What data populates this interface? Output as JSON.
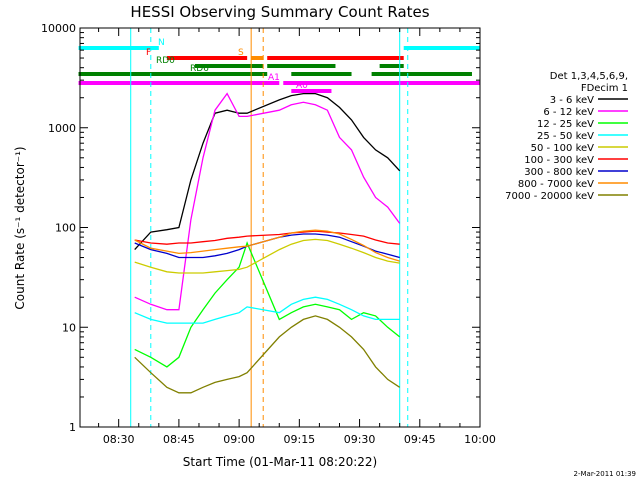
{
  "chart_data": {
    "type": "line",
    "title": "HESSI Observing Summary Count Rates",
    "xlabel": "Start Time (01-Mar-11 08:20:22)",
    "ylabel": "Count Rate (s⁻¹ detector⁻¹)",
    "y_scale": "log",
    "ylim": [
      1,
      10000
    ],
    "xlim": [
      "08:20:22",
      "10:00:00"
    ],
    "x_ticks": [
      "08:30",
      "08:45",
      "09:00",
      "09:15",
      "09:30",
      "09:45",
      "10:00"
    ],
    "y_ticks": [
      "1",
      "10",
      "100",
      "1000",
      "10000"
    ],
    "legend_position": "right",
    "legend_header": [
      "Det 1,3,4,5,6,9,",
      "FDecim 1"
    ],
    "timestamp": "2-Mar-2011 01:39",
    "flags": [
      {
        "label": "N",
        "color": "#00ffff",
        "segments": [
          [
            "08:20",
            "08:40"
          ],
          [
            "09:41",
            "10:00"
          ]
        ]
      },
      {
        "label": "S",
        "color": "#ff8c00",
        "segments": [
          [
            "09:03",
            "09:06"
          ]
        ]
      },
      {
        "label": "F",
        "color": "#ff0000",
        "segments": [
          [
            "08:42",
            "09:02"
          ],
          [
            "09:07",
            "09:41"
          ]
        ]
      },
      {
        "label": "RD0",
        "color": "#008000",
        "segments": [
          [
            "08:49",
            "09:06"
          ],
          [
            "09:07",
            "09:24"
          ],
          [
            "09:35",
            "09:41"
          ]
        ]
      },
      {
        "label": "RD6",
        "color": "#008000",
        "segments": [
          [
            "08:20",
            "09:07"
          ],
          [
            "09:13",
            "09:28"
          ],
          [
            "09:33",
            "09:58"
          ]
        ]
      },
      {
        "label": "A1",
        "color": "#ff00ff",
        "segments": [
          [
            "08:20",
            "09:10"
          ],
          [
            "09:11",
            "10:00"
          ]
        ]
      },
      {
        "label": "A0",
        "color": "#ff00ff",
        "segments": [
          [
            "09:13",
            "09:23"
          ]
        ]
      }
    ],
    "vertical_markers": [
      {
        "time": "08:33",
        "color": "#00ffff",
        "style": "solid"
      },
      {
        "time": "08:38",
        "color": "#00ffff",
        "style": "dashed"
      },
      {
        "time": "09:03",
        "color": "#ff8c00",
        "style": "solid"
      },
      {
        "time": "09:06",
        "color": "#ff8c00",
        "style": "dashed"
      },
      {
        "time": "09:40",
        "color": "#00ffff",
        "style": "solid"
      },
      {
        "time": "09:42",
        "color": "#00ffff",
        "style": "dashed"
      }
    ],
    "series": [
      {
        "name": "3 - 6 keV",
        "color": "#000000",
        "x": [
          "08:34",
          "08:38",
          "08:42",
          "08:45",
          "08:48",
          "08:51",
          "08:54",
          "08:57",
          "09:00",
          "09:02",
          "09:10",
          "09:13",
          "09:16",
          "09:19",
          "09:22",
          "09:25",
          "09:28",
          "09:31",
          "09:34",
          "09:37",
          "09:40"
        ],
        "y": [
          60,
          90,
          95,
          100,
          300,
          700,
          1400,
          1500,
          1400,
          1400,
          1900,
          2100,
          2200,
          2200,
          2000,
          1600,
          1200,
          800,
          600,
          500,
          370
        ]
      },
      {
        "name": "6 - 12 keV",
        "color": "#ff00ff",
        "x": [
          "08:34",
          "08:38",
          "08:42",
          "08:45",
          "08:48",
          "08:51",
          "08:54",
          "08:57",
          "09:00",
          "09:02",
          "09:10",
          "09:13",
          "09:16",
          "09:19",
          "09:22",
          "09:25",
          "09:28",
          "09:31",
          "09:34",
          "09:37",
          "09:40"
        ],
        "y": [
          20,
          17,
          15,
          15,
          120,
          500,
          1500,
          2200,
          1300,
          1300,
          1500,
          1700,
          1800,
          1700,
          1500,
          800,
          600,
          320,
          200,
          160,
          110
        ]
      },
      {
        "name": "12 - 25 keV",
        "color": "#00ff00",
        "x": [
          "08:34",
          "08:38",
          "08:42",
          "08:45",
          "08:48",
          "08:51",
          "08:54",
          "08:57",
          "09:00",
          "09:02",
          "09:10",
          "09:13",
          "09:16",
          "09:19",
          "09:22",
          "09:25",
          "09:28",
          "09:31",
          "09:34",
          "09:37",
          "09:40"
        ],
        "y": [
          6,
          5,
          4,
          5,
          10,
          15,
          22,
          30,
          40,
          70,
          12,
          14,
          16,
          17,
          16,
          15,
          12,
          14,
          13,
          10,
          8
        ]
      },
      {
        "name": "25 - 50 keV",
        "color": "#00ffff",
        "x": [
          "08:34",
          "08:38",
          "08:42",
          "08:45",
          "08:48",
          "08:51",
          "08:54",
          "08:57",
          "09:00",
          "09:02",
          "09:10",
          "09:13",
          "09:16",
          "09:19",
          "09:22",
          "09:25",
          "09:28",
          "09:31",
          "09:34",
          "09:37",
          "09:40"
        ],
        "y": [
          14,
          12,
          11,
          11,
          11,
          11,
          12,
          13,
          14,
          16,
          14,
          17,
          19,
          20,
          19,
          17,
          15,
          13,
          12,
          12,
          12
        ]
      },
      {
        "name": "50 - 100 keV",
        "color": "#cccc00",
        "x": [
          "08:34",
          "08:38",
          "08:42",
          "08:45",
          "08:48",
          "08:51",
          "08:54",
          "08:57",
          "09:00",
          "09:02",
          "09:10",
          "09:13",
          "09:16",
          "09:19",
          "09:22",
          "09:25",
          "09:28",
          "09:31",
          "09:34",
          "09:37",
          "09:40"
        ],
        "y": [
          45,
          40,
          36,
          35,
          35,
          35,
          36,
          37,
          38,
          40,
          60,
          68,
          74,
          76,
          74,
          68,
          62,
          56,
          50,
          46,
          44
        ]
      },
      {
        "name": "100 - 300 keV",
        "color": "#ff0000",
        "x": [
          "08:34",
          "08:38",
          "08:42",
          "08:45",
          "08:48",
          "08:51",
          "08:54",
          "08:57",
          "09:00",
          "09:02",
          "09:10",
          "09:13",
          "09:16",
          "09:19",
          "09:22",
          "09:25",
          "09:28",
          "09:31",
          "09:34",
          "09:37",
          "09:40"
        ],
        "y": [
          75,
          70,
          68,
          70,
          70,
          72,
          74,
          78,
          80,
          82,
          85,
          88,
          90,
          92,
          90,
          88,
          85,
          82,
          75,
          70,
          68
        ]
      },
      {
        "name": "300 - 800 keV",
        "color": "#0000cc",
        "x": [
          "08:34",
          "08:38",
          "08:42",
          "08:45",
          "08:48",
          "08:51",
          "08:54",
          "08:57",
          "09:00",
          "09:02",
          "09:10",
          "09:13",
          "09:16",
          "09:19",
          "09:22",
          "09:25",
          "09:28",
          "09:31",
          "09:34",
          "09:37",
          "09:40"
        ],
        "y": [
          70,
          60,
          55,
          50,
          50,
          50,
          52,
          55,
          60,
          65,
          80,
          84,
          86,
          86,
          84,
          80,
          72,
          65,
          58,
          54,
          50
        ]
      },
      {
        "name": "800 - 7000 keV",
        "color": "#ff8c00",
        "x": [
          "08:34",
          "08:38",
          "08:42",
          "08:45",
          "08:48",
          "08:51",
          "08:54",
          "08:57",
          "09:00",
          "09:02",
          "09:10",
          "09:13",
          "09:16",
          "09:19",
          "09:22",
          "09:25",
          "09:28",
          "09:31",
          "09:34",
          "09:37",
          "09:40"
        ],
        "y": [
          75,
          62,
          58,
          55,
          56,
          58,
          60,
          62,
          64,
          65,
          80,
          88,
          92,
          94,
          92,
          86,
          76,
          66,
          56,
          50,
          46
        ]
      },
      {
        "name": "7000 - 20000 keV",
        "color": "#808000",
        "x": [
          "08:34",
          "08:38",
          "08:42",
          "08:45",
          "08:48",
          "08:51",
          "08:54",
          "08:57",
          "09:00",
          "09:02",
          "09:10",
          "09:13",
          "09:16",
          "09:19",
          "09:22",
          "09:25",
          "09:28",
          "09:31",
          "09:34",
          "09:37",
          "09:40"
        ],
        "y": [
          5,
          3.5,
          2.5,
          2.2,
          2.2,
          2.5,
          2.8,
          3,
          3.2,
          3.5,
          8,
          10,
          12,
          13,
          12,
          10,
          8,
          6,
          4,
          3,
          2.5
        ]
      }
    ]
  }
}
